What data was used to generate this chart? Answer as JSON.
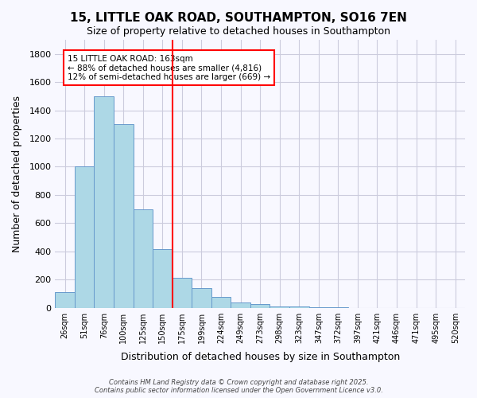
{
  "title": "15, LITTLE OAK ROAD, SOUTHAMPTON, SO16 7EN",
  "subtitle": "Size of property relative to detached houses in Southampton",
  "xlabel": "Distribution of detached houses by size in Southampton",
  "ylabel": "Number of detached properties",
  "categories": [
    "26sqm",
    "51sqm",
    "76sqm",
    "100sqm",
    "125sqm",
    "150sqm",
    "175sqm",
    "199sqm",
    "224sqm",
    "249sqm",
    "273sqm",
    "298sqm",
    "323sqm",
    "347sqm",
    "372sqm",
    "397sqm",
    "421sqm",
    "446sqm",
    "471sqm",
    "495sqm",
    "520sqm"
  ],
  "values": [
    110,
    1000,
    1500,
    1300,
    700,
    415,
    215,
    140,
    75,
    40,
    25,
    10,
    8,
    5,
    3,
    0,
    0,
    0,
    0,
    0,
    0
  ],
  "bar_color": "#add8e6",
  "bar_edge_color": "#6699cc",
  "vline_x_index": 5.5,
  "vline_color": "red",
  "annotation_title": "15 LITTLE OAK ROAD: 163sqm",
  "annotation_line1": "← 88% of detached houses are smaller (4,816)",
  "annotation_line2": "12% of semi-detached houses are larger (669) →",
  "annotation_box_color": "white",
  "annotation_box_edge": "red",
  "ylim": [
    0,
    1900
  ],
  "yticks": [
    0,
    200,
    400,
    600,
    800,
    1000,
    1200,
    1400,
    1600,
    1800
  ],
  "footer1": "Contains HM Land Registry data © Crown copyright and database right 2025.",
  "footer2": "Contains public sector information licensed under the Open Government Licence v3.0.",
  "bg_color": "#f8f8ff",
  "grid_color": "#ccccdd"
}
